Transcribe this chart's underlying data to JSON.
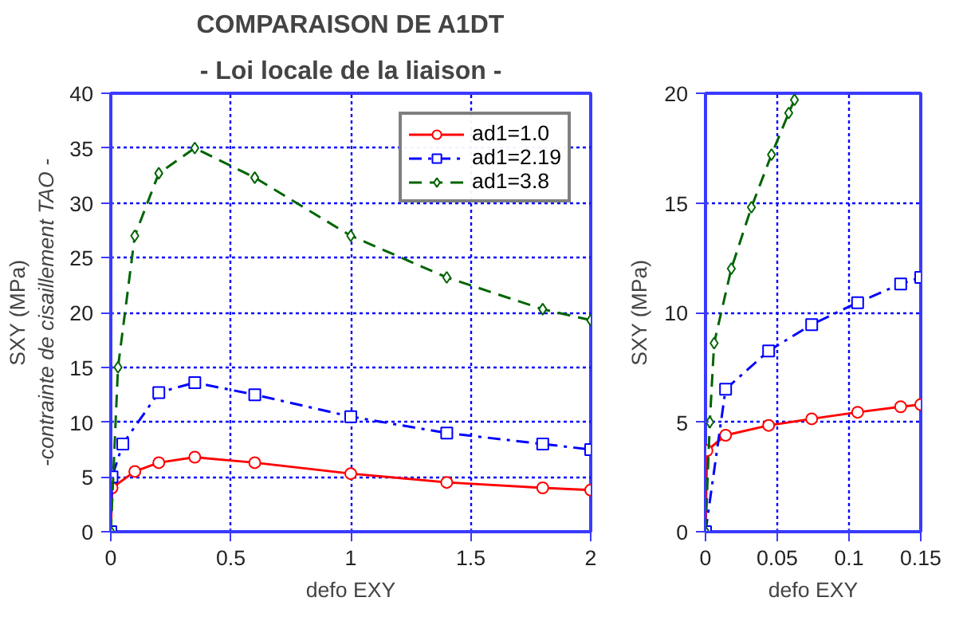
{
  "chart_data": [
    {
      "type": "line",
      "title": "COMPARAISON DE A1DT",
      "subtitle": "- Loi locale de la liaison -",
      "xlabel": "defo EXY",
      "ylabel": "SXY (MPa)",
      "annotations": [
        "-contrainte de cisaillement TAO -"
      ],
      "xlim": [
        0,
        2
      ],
      "ylim": [
        0,
        40
      ],
      "xticks": [
        0,
        0.5,
        1,
        1.5,
        2
      ],
      "yticks": [
        0,
        5,
        10,
        15,
        20,
        25,
        30,
        35,
        40
      ],
      "grid": true,
      "legend": "top right",
      "series": [
        {
          "name": "ad1=1.0",
          "color": "#ff0000",
          "marker": "circle",
          "line_style": "solid",
          "x": [
            0,
            0.005,
            0.1,
            0.2,
            0.35,
            0.6,
            1.0,
            1.4,
            1.8,
            2.0
          ],
          "values": [
            0,
            4,
            5.5,
            6.3,
            6.8,
            6.3,
            5.3,
            4.5,
            4.0,
            3.8
          ]
        },
        {
          "name": "ad1=2.19",
          "color": "#0000ff",
          "marker": "square",
          "line_style": "dashdot",
          "x": [
            0,
            0.005,
            0.05,
            0.2,
            0.35,
            0.6,
            1.0,
            1.4,
            1.8,
            2.0
          ],
          "values": [
            0,
            5,
            8,
            12.7,
            13.6,
            12.5,
            10.5,
            9.0,
            8.0,
            7.5
          ]
        },
        {
          "name": "ad1=3.8",
          "color": "#006400",
          "marker": "diamond",
          "line_style": "dashed",
          "x": [
            0,
            0.03,
            0.1,
            0.2,
            0.35,
            0.6,
            1.0,
            1.4,
            1.8,
            2.0
          ],
          "values": [
            0,
            15,
            27,
            32.7,
            35,
            32.3,
            27,
            23.2,
            20.3,
            19.3
          ]
        }
      ]
    },
    {
      "type": "line",
      "xlabel": "defo EXY",
      "ylabel": "SXY (MPa)",
      "xlim": [
        0,
        0.15
      ],
      "ylim": [
        0,
        20
      ],
      "xticks": [
        0,
        0.05,
        0.1,
        0.15
      ],
      "yticks": [
        0,
        5,
        10,
        15,
        20
      ],
      "grid": true,
      "series": [
        {
          "color": "#ff0000",
          "marker": "circle",
          "line_style": "solid",
          "x": [
            0,
            0.001,
            0.014,
            0.044,
            0.074,
            0.106,
            0.136,
            0.15
          ],
          "values": [
            0,
            3.7,
            4.4,
            4.85,
            5.15,
            5.45,
            5.7,
            5.8
          ]
        },
        {
          "color": "#0000ff",
          "marker": "square",
          "line_style": "dashdot",
          "x": [
            0,
            0.014,
            0.044,
            0.074,
            0.106,
            0.136,
            0.15
          ],
          "values": [
            0,
            6.5,
            8.25,
            9.45,
            10.45,
            11.3,
            11.6
          ]
        },
        {
          "color": "#006400",
          "marker": "diamond",
          "line_style": "dashed",
          "x": [
            0,
            0.003,
            0.006,
            0.018,
            0.032,
            0.046,
            0.058,
            0.062
          ],
          "values": [
            0,
            5,
            8.6,
            12,
            14.8,
            17.2,
            19.1,
            19.7
          ]
        }
      ]
    }
  ]
}
